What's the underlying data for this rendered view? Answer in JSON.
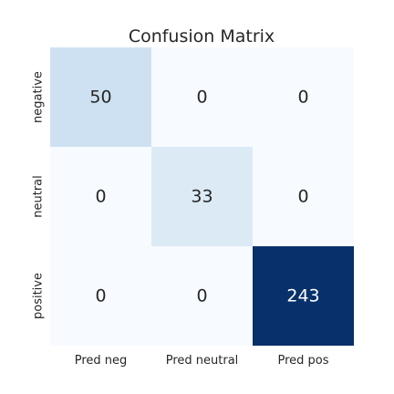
{
  "chart_data": {
    "type": "heatmap",
    "title": "Confusion Matrix",
    "row_labels": [
      "negative",
      "neutral",
      "positive"
    ],
    "col_labels": [
      "Pred neg",
      "Pred neutral",
      "Pred pos"
    ],
    "values": [
      [
        50,
        0,
        0
      ],
      [
        0,
        33,
        0
      ],
      [
        0,
        0,
        243
      ]
    ],
    "colormap": "Blues",
    "color_low": "#f7fbff",
    "color_high": "#08306b",
    "annotated": true,
    "colorbar": false,
    "grid": false
  }
}
